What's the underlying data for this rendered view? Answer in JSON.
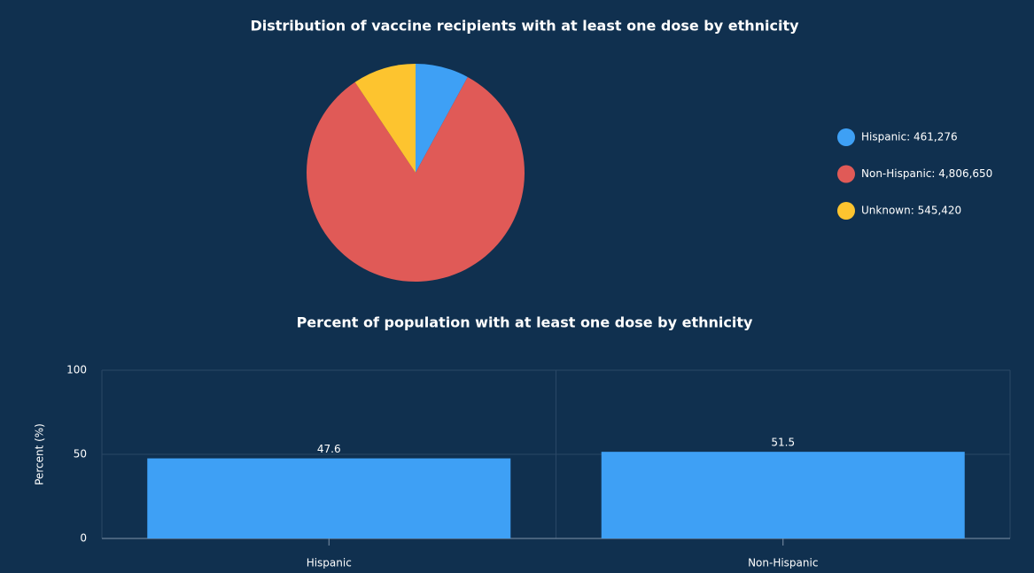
{
  "chart_data": [
    {
      "type": "pie",
      "title": "Distribution of vaccine recipients with at least one dose by ethnicity",
      "labels": [
        "Hispanic: 461,276",
        "Non-Hispanic: 4,806,650",
        "Unknown: 545,420"
      ],
      "values": [
        461276,
        4806650,
        545420
      ],
      "colors": [
        "#3ea0f5",
        "#e05a57",
        "#fdc42f"
      ],
      "legend": "right"
    },
    {
      "type": "bar",
      "title": "Percent of population with at least one dose by ethnicity",
      "categories": [
        "Hispanic",
        "Non-Hispanic"
      ],
      "values": [
        47.6,
        51.5
      ],
      "color": "#3ea0f5",
      "ylabel": "Percent (%)",
      "ylim": [
        0,
        100
      ],
      "yticks": [
        0,
        50,
        100
      ],
      "grid": true
    }
  ]
}
